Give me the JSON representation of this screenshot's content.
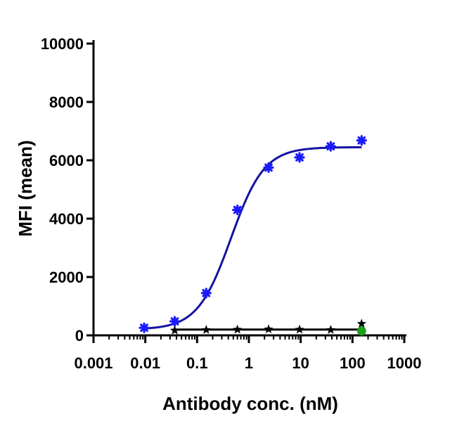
{
  "chart_data": {
    "type": "scatter",
    "title": "",
    "xlabel": "Antibody conc. (nM)",
    "ylabel": "MFI (mean)",
    "x_scale": "log",
    "xlim": [
      0.001,
      1000
    ],
    "ylim": [
      0,
      10000
    ],
    "x_ticks": [
      "0.001",
      "0.01",
      "0.1",
      "1",
      "10",
      "100",
      "1000"
    ],
    "y_ticks": [
      "0",
      "2000",
      "4000",
      "6000",
      "8000",
      "10000"
    ],
    "grid": false,
    "legend": "none",
    "series": [
      {
        "color": "#1a1aff",
        "marker": "asterisk",
        "x": [
          0.0095,
          0.037,
          0.15,
          0.6,
          2.4,
          9.5,
          38,
          150
        ],
        "y": [
          260,
          480,
          1450,
          4300,
          5750,
          6100,
          6480,
          6680
        ],
        "fit": {
          "type": "sigmoid",
          "color": "#1414a0",
          "bottom": 200,
          "top": 6450,
          "ec50": 0.45,
          "hill": 1.35
        }
      },
      {
        "color": "#000000",
        "marker": "star",
        "x": [
          0.037,
          0.15,
          0.6,
          2.4,
          9.5,
          38,
          150
        ],
        "y": [
          170,
          190,
          200,
          210,
          200,
          190,
          400
        ],
        "fit": {
          "type": "line",
          "color": "#000000",
          "value": 200
        }
      },
      {
        "color": "#1aa01a",
        "marker": "circle",
        "x": [
          150
        ],
        "y": [
          150
        ]
      }
    ]
  }
}
